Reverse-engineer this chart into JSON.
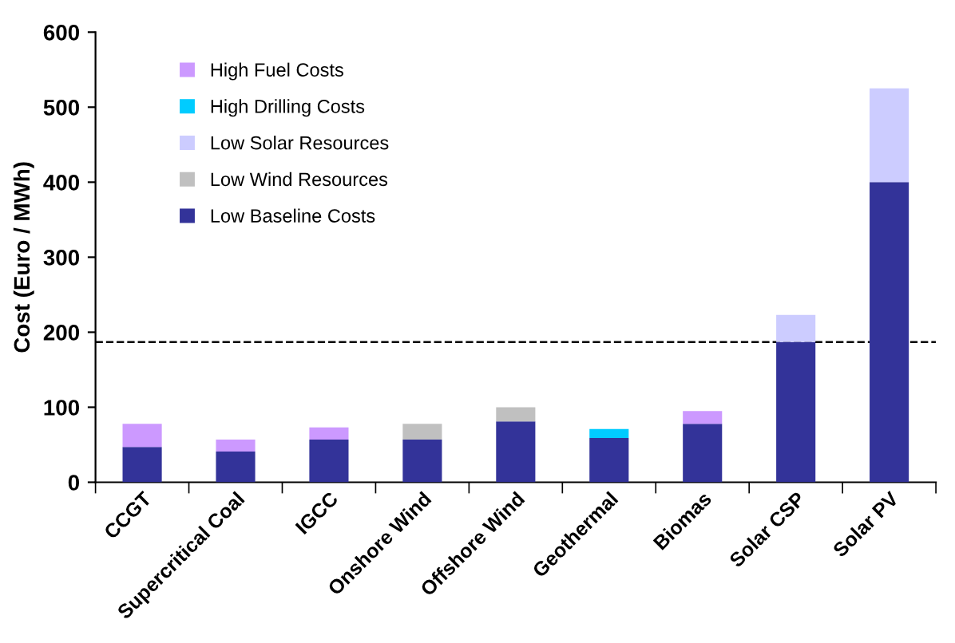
{
  "chart_data": {
    "type": "bar",
    "stacked": true,
    "ylabel": "Cost (Euro / MWh)",
    "categories": [
      "CCGT",
      "Supercritical Coal",
      "IGCC",
      "Onshore Wind",
      "Offshore Wind",
      "Geothermal",
      "Biomas",
      "Solar CSP",
      "Solar PV"
    ],
    "series": [
      {
        "name": "Low Baseline Costs",
        "color": "#333399",
        "values": [
          47,
          41,
          57,
          57,
          81,
          59,
          78,
          187,
          400
        ]
      },
      {
        "name": "Low Wind Resources",
        "color": "#c0c0c0",
        "values": [
          null,
          null,
          null,
          21,
          19,
          null,
          null,
          null,
          null
        ]
      },
      {
        "name": "Low Solar Resources",
        "color": "#ccccff",
        "values": [
          null,
          null,
          null,
          null,
          null,
          null,
          null,
          36,
          125
        ]
      },
      {
        "name": "High Drilling Costs",
        "color": "#00ccff",
        "values": [
          null,
          null,
          null,
          null,
          null,
          12,
          null,
          null,
          null
        ]
      },
      {
        "name": "High Fuel Costs",
        "color": "#cc99ff",
        "values": [
          31,
          16,
          16,
          null,
          null,
          null,
          17,
          null,
          null
        ]
      }
    ],
    "ylim": [
      0,
      600
    ],
    "yticks": [
      0,
      100,
      200,
      300,
      400,
      500,
      600
    ],
    "ref_lines": [
      {
        "axis": "y",
        "value": 187,
        "line_style": "dashed",
        "color": "#000000"
      }
    ],
    "grid": false,
    "legend": "top left"
  }
}
